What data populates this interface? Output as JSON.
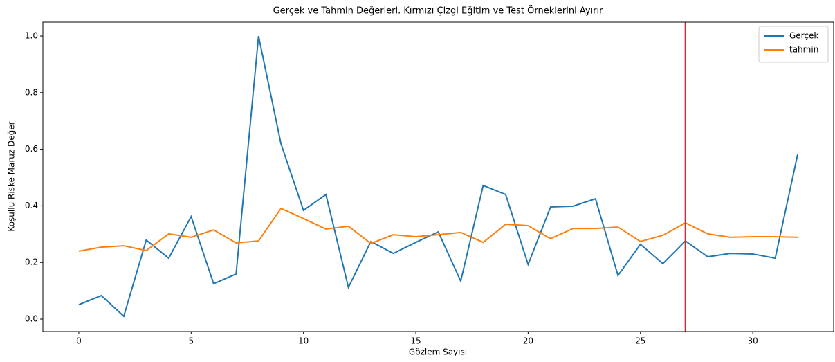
{
  "chart_data": {
    "type": "line",
    "title": "Gerçek ve Tahmin Değerleri. Kırmızı Çizgi Eğitim ve Test Örneklerini Ayırır",
    "xlabel": "Gözlem Sayısı",
    "ylabel": "Koşullu Riske Maruz Değer",
    "x": [
      0,
      1,
      2,
      3,
      4,
      5,
      6,
      7,
      8,
      9,
      10,
      11,
      12,
      13,
      14,
      15,
      16,
      17,
      18,
      19,
      20,
      21,
      22,
      23,
      24,
      25,
      26,
      27,
      28,
      29,
      30,
      31,
      32
    ],
    "series": [
      {
        "name": "Gerçek",
        "color": "#1f77b4",
        "values": [
          0.051,
          0.083,
          0.01,
          0.279,
          0.215,
          0.362,
          0.125,
          0.159,
          1.0,
          0.619,
          0.384,
          0.44,
          0.112,
          0.274,
          0.232,
          0.271,
          0.308,
          0.134,
          0.472,
          0.44,
          0.193,
          0.396,
          0.399,
          0.425,
          0.154,
          0.264,
          0.196,
          0.276,
          0.22,
          0.232,
          0.23,
          0.215,
          0.582
        ]
      },
      {
        "name": "tahmin",
        "color": "#ff7f0e",
        "values": [
          0.24,
          0.254,
          0.259,
          0.242,
          0.301,
          0.289,
          0.315,
          0.269,
          0.276,
          0.391,
          0.355,
          0.318,
          0.328,
          0.267,
          0.298,
          0.291,
          0.298,
          0.306,
          0.271,
          0.335,
          0.33,
          0.284,
          0.32,
          0.32,
          0.325,
          0.274,
          0.296,
          0.34,
          0.301,
          0.289,
          0.291,
          0.291,
          0.289
        ]
      }
    ],
    "vline": {
      "x": 27,
      "color": "#d62728"
    },
    "xlim": [
      -1.6,
      33.6
    ],
    "xticks": [
      0,
      5,
      10,
      15,
      20,
      25,
      30
    ],
    "ylim": [
      -0.044,
      1.049
    ],
    "yticks": [
      {
        "value": 0,
        "label": "0.0"
      },
      0.2,
      0.4,
      0.6,
      0.8,
      {
        "value": 1,
        "label": "1.0"
      }
    ],
    "legend": "upper right"
  }
}
